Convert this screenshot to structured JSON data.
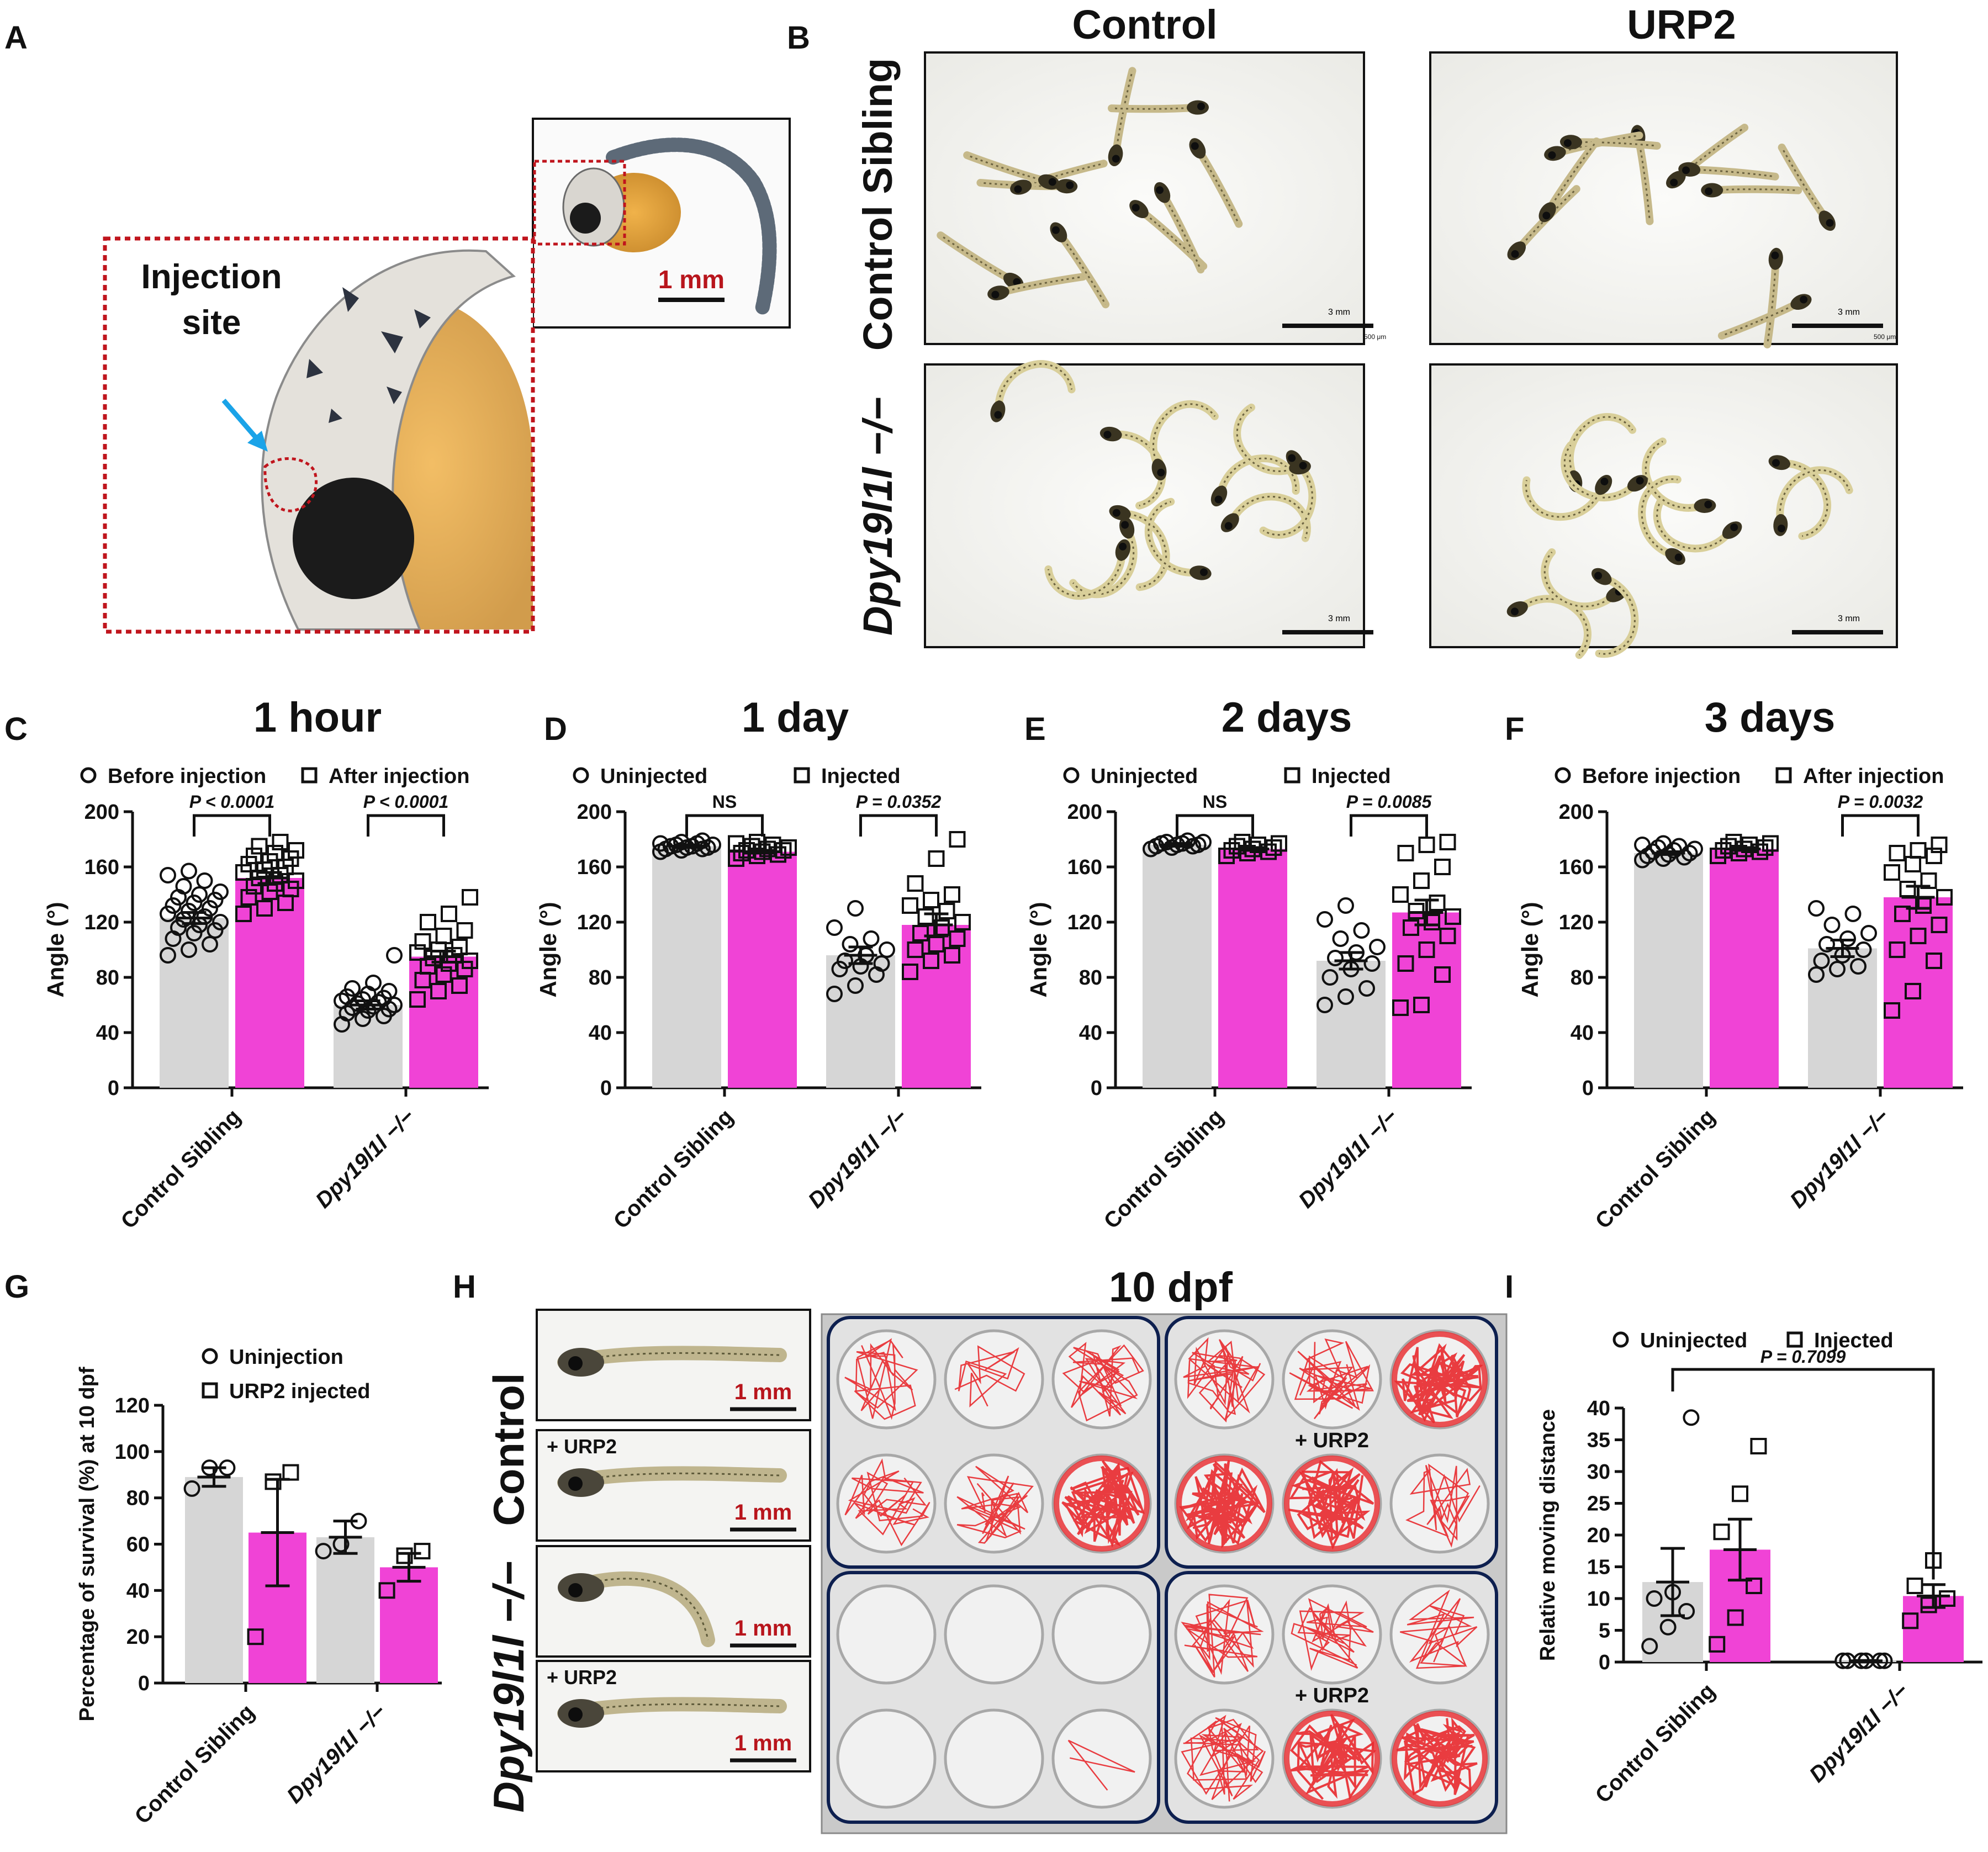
{
  "panel_letters": [
    "A",
    "B",
    "C",
    "D",
    "E",
    "F",
    "G",
    "H",
    "I"
  ],
  "colors": {
    "gray_bar": "#d6d6d6",
    "magenta_bar": "#f043d6",
    "dashed_red": "#c0151d",
    "scale_text_red": "#b8151c",
    "arrow_blue": "#1aa3e8",
    "trace_red": "#e8282c",
    "plate_frame": "#0d1f4f"
  },
  "panel_a": {
    "injection_label_line1": "Injection",
    "injection_label_line2": "site",
    "scale_label": "1 mm"
  },
  "panel_b": {
    "col_headers": [
      "Control",
      "URP2"
    ],
    "row_labels": [
      "Control Sibling",
      "Dpy19l1l −/−"
    ],
    "scale_label": "3 mm",
    "tiny_scale_label": "500 μm"
  },
  "panel_h": {
    "title": "10 dpf",
    "row_labels": [
      "Control",
      "Dpy19l1l −/−"
    ],
    "urp2_label": "+ URP2",
    "scale_label": "1 mm"
  },
  "chart_data": [
    {
      "panel": "C",
      "type": "bar",
      "title": "1 hour",
      "categories": [
        "Control Sibling",
        "Dpy19l1l −/−"
      ],
      "ylabel": "Angle (°)",
      "ylim": [
        0,
        200
      ],
      "yticks": [
        0,
        40,
        80,
        120,
        160,
        200
      ],
      "legend": [
        "Before injection",
        "After injection"
      ],
      "series": [
        {
          "name": "Before injection",
          "marker": "circle",
          "values": [
            123,
            60
          ],
          "sem": [
            4,
            3
          ],
          "points": [
            [
              96,
              100,
              104,
              108,
              112,
              114,
              116,
              118,
              120,
              122,
              124,
              126,
              128,
              130,
              132,
              134,
              136,
              138,
              140,
              142,
              146,
              150,
              154,
              157
            ],
            [
              46,
              50,
              52,
              54,
              56,
              57,
              58,
              59,
              60,
              61,
              62,
              63,
              64,
              65,
              66,
              68,
              70,
              72,
              76,
              96
            ]
          ]
        },
        {
          "name": "After injection",
          "marker": "square",
          "values": [
            152,
            95
          ],
          "sem": [
            4,
            4
          ],
          "points": [
            [
              126,
              130,
              134,
              138,
              142,
              144,
              146,
              148,
              150,
              152,
              154,
              156,
              158,
              160,
              162,
              164,
              166,
              168,
              170,
              172,
              175,
              178
            ],
            [
              64,
              70,
              74,
              78,
              82,
              86,
              88,
              90,
              92,
              94,
              96,
              98,
              100,
              102,
              106,
              110,
              114,
              120,
              126,
              138
            ]
          ]
        }
      ],
      "comparisons": [
        {
          "between": "Control Sibling",
          "label": "P < 0.0001"
        },
        {
          "between": "Dpy19l1l −/−",
          "label": "P < 0.0001"
        }
      ]
    },
    {
      "panel": "D",
      "type": "bar",
      "title": "1 day",
      "categories": [
        "Control Sibling",
        "Dpy19l1l −/−"
      ],
      "ylabel": "Angle (°)",
      "ylim": [
        0,
        200
      ],
      "yticks": [
        0,
        40,
        80,
        120,
        160,
        200
      ],
      "legend": [
        "Uninjected",
        "Injected"
      ],
      "series": [
        {
          "name": "Uninjected",
          "marker": "circle",
          "values": [
            175,
            96
          ],
          "sem": [
            1,
            6
          ],
          "points": [
            [
              171,
              172,
              173,
              173,
              174,
              174,
              175,
              175,
              176,
              176,
              177,
              177,
              178,
              179
            ],
            [
              68,
              74,
              82,
              86,
              88,
              90,
              92,
              96,
              100,
              104,
              108,
              116,
              130
            ]
          ]
        },
        {
          "name": "Injected",
          "marker": "square",
          "values": [
            171,
            118
          ],
          "sem": [
            1,
            8
          ],
          "points": [
            [
              166,
              168,
              169,
              170,
              171,
              172,
              172,
              173,
              174,
              175,
              176,
              177,
              178
            ],
            [
              84,
              92,
              96,
              100,
              104,
              108,
              112,
              116,
              120,
              124,
              128,
              132,
              136,
              140,
              148,
              166,
              180
            ]
          ]
        }
      ],
      "comparisons": [
        {
          "between": "Control Sibling",
          "label": "NS"
        },
        {
          "between": "Dpy19l1l −/−",
          "label": "P = 0.0352"
        }
      ]
    },
    {
      "panel": "E",
      "type": "bar",
      "title": "2 days",
      "categories": [
        "Control Sibling",
        "Dpy19l1l −/−"
      ],
      "ylabel": "Angle (°)",
      "ylim": [
        0,
        200
      ],
      "yticks": [
        0,
        40,
        80,
        120,
        160,
        200
      ],
      "legend": [
        "Uninjected",
        "Injected"
      ],
      "series": [
        {
          "name": "Uninjected",
          "marker": "circle",
          "values": [
            176,
            92
          ],
          "sem": [
            1,
            6
          ],
          "points": [
            [
              173,
              174,
              175,
              175,
              176,
              176,
              177,
              177,
              178,
              178,
              179
            ],
            [
              60,
              66,
              72,
              80,
              86,
              90,
              94,
              98,
              102,
              108,
              114,
              122,
              132
            ]
          ]
        },
        {
          "name": "Injected",
          "marker": "square",
          "values": [
            173,
            127
          ],
          "sem": [
            1,
            9
          ],
          "points": [
            [
              168,
              170,
              171,
              172,
              173,
              174,
              175,
              176,
              177,
              178
            ],
            [
              58,
              60,
              82,
              90,
              100,
              110,
              116,
              120,
              124,
              128,
              134,
              140,
              150,
              160,
              170,
              176,
              178
            ]
          ]
        }
      ],
      "comparisons": [
        {
          "between": "Control Sibling",
          "label": "NS"
        },
        {
          "between": "Dpy19l1l −/−",
          "label": "P = 0.0085"
        }
      ]
    },
    {
      "panel": "F",
      "type": "bar",
      "title": "3 days",
      "categories": [
        "Control Sibling",
        "Dpy19l1l −/−"
      ],
      "ylabel": "Angle (°)",
      "ylim": [
        0,
        200
      ],
      "yticks": [
        0,
        40,
        80,
        120,
        160,
        200
      ],
      "legend": [
        "Before injection",
        "After injection"
      ],
      "series": [
        {
          "name": "Before injection",
          "marker": "circle",
          "values": [
            170,
            101
          ],
          "sem": [
            1,
            6
          ],
          "points": [
            [
              165,
              166,
              167,
              168,
              169,
              170,
              171,
              172,
              173,
              174,
              175,
              176,
              177
            ],
            [
              82,
              86,
              88,
              92,
              96,
              100,
              104,
              108,
              112,
              118,
              126,
              130
            ]
          ]
        },
        {
          "name": "After injection",
          "marker": "square",
          "values": [
            173,
            138
          ],
          "sem": [
            1,
            8
          ],
          "points": [
            [
              168,
              170,
              171,
              172,
              173,
              174,
              175,
              176,
              177,
              178
            ],
            [
              56,
              70,
              92,
              100,
              110,
              118,
              126,
              132,
              138,
              144,
              150,
              156,
              162,
              168,
              170,
              172,
              176
            ]
          ]
        }
      ],
      "comparisons": [
        {
          "between": "Dpy19l1l −/−",
          "label": "P = 0.0032"
        }
      ]
    },
    {
      "panel": "G",
      "type": "bar",
      "categories": [
        "Control Sibling",
        "Dpy19l1l −/−"
      ],
      "ylabel": "Percentage of survival (%) at 10 dpf",
      "ylim": [
        0,
        120
      ],
      "yticks": [
        0,
        20,
        40,
        60,
        80,
        100,
        120
      ],
      "legend": [
        "Uninjection",
        "URP2 injected"
      ],
      "series": [
        {
          "name": "Uninjection",
          "marker": "circle",
          "values": [
            89,
            63
          ],
          "sem": [
            4,
            7
          ],
          "points": [
            [
              84,
              93,
              93
            ],
            [
              57,
              60,
              70
            ]
          ]
        },
        {
          "name": "URP2 injected",
          "marker": "square",
          "values": [
            65,
            50
          ],
          "sem": [
            23,
            6
          ],
          "points": [
            [
              20,
              87,
              91
            ],
            [
              40,
              55,
              57
            ]
          ]
        }
      ]
    },
    {
      "panel": "I",
      "type": "bar",
      "categories": [
        "Control Sibling",
        "Dpy19l1l −/−"
      ],
      "ylabel": "Relative moving distance",
      "ylim": [
        0,
        40
      ],
      "yticks": [
        0,
        5,
        10,
        15,
        20,
        25,
        30,
        35,
        40
      ],
      "legend": [
        "Uninjected",
        "Injected"
      ],
      "series": [
        {
          "name": "Uninjected",
          "marker": "circle",
          "values": [
            12.6,
            0.2
          ],
          "sem": [
            5.3,
            0.05
          ],
          "points": [
            [
              2.5,
              5.5,
              8.0,
              10.0,
              11.0,
              38.5
            ],
            [
              0.2,
              0.2,
              0.2,
              0.2,
              0.2,
              0.2
            ]
          ]
        },
        {
          "name": "Injected",
          "marker": "square",
          "values": [
            17.7,
            10.4
          ],
          "sem": [
            4.8,
            1.8
          ],
          "points": [
            [
              2.8,
              7.0,
              12.0,
              20.5,
              26.5,
              34.0
            ],
            [
              6.5,
              9.0,
              10.0,
              12.0,
              16.0
            ]
          ]
        }
      ],
      "comparisons": [
        {
          "between": "Control Sibling Uninjected vs Dpy19l1l −/− Injected",
          "label": "P = 0.7099"
        }
      ]
    }
  ]
}
